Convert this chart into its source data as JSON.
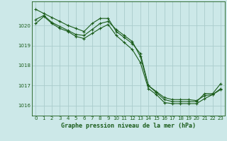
{
  "title": "Graphe pression niveau de la mer (hPa)",
  "background_color": "#cce8e8",
  "grid_color": "#aacccc",
  "line_color": "#1a5c1a",
  "marker_color": "#1a5c1a",
  "xlim": [
    -0.5,
    23.5
  ],
  "ylim": [
    1015.5,
    1021.2
  ],
  "yticks": [
    1016,
    1017,
    1018,
    1019,
    1020
  ],
  "xticks": [
    0,
    1,
    2,
    3,
    4,
    5,
    6,
    7,
    8,
    9,
    10,
    11,
    12,
    13,
    14,
    15,
    16,
    17,
    18,
    19,
    20,
    21,
    22,
    23
  ],
  "series1_x": [
    0,
    1,
    2,
    3,
    4,
    5,
    6,
    7,
    8,
    9,
    10,
    11,
    12,
    13,
    14,
    15,
    16,
    17,
    18,
    19,
    20,
    21,
    22,
    23
  ],
  "series1_y": [
    1020.8,
    1020.6,
    1020.4,
    1020.2,
    1020.0,
    1019.85,
    1019.7,
    1020.1,
    1020.35,
    1020.35,
    1019.7,
    1019.4,
    1019.1,
    1018.6,
    1017.0,
    1016.65,
    1016.3,
    1016.2,
    1016.2,
    1016.2,
    1016.2,
    1016.6,
    1016.6,
    1017.1
  ],
  "series2_x": [
    0,
    1,
    2,
    3,
    4,
    5,
    6,
    7,
    8,
    9,
    10,
    11,
    12,
    13,
    14,
    15,
    16,
    17,
    18,
    19,
    20,
    21,
    22,
    23
  ],
  "series2_y": [
    1020.3,
    1020.5,
    1020.15,
    1019.95,
    1019.75,
    1019.55,
    1019.5,
    1019.8,
    1020.1,
    1020.2,
    1019.8,
    1019.5,
    1019.2,
    1018.45,
    1017.0,
    1016.7,
    1016.4,
    1016.3,
    1016.3,
    1016.3,
    1016.25,
    1016.5,
    1016.55,
    1016.8
  ],
  "series3_x": [
    0,
    1,
    2,
    3,
    4,
    5,
    6,
    7,
    8,
    9,
    10,
    11,
    12,
    13,
    14,
    15,
    16,
    17,
    18,
    19,
    20,
    21,
    22,
    23
  ],
  "series3_y": [
    1020.1,
    1020.45,
    1020.1,
    1019.85,
    1019.7,
    1019.45,
    1019.35,
    1019.6,
    1019.85,
    1020.05,
    1019.5,
    1019.15,
    1018.8,
    1018.15,
    1016.85,
    1016.55,
    1016.15,
    1016.1,
    1016.1,
    1016.1,
    1016.1,
    1016.35,
    1016.55,
    1016.85
  ]
}
